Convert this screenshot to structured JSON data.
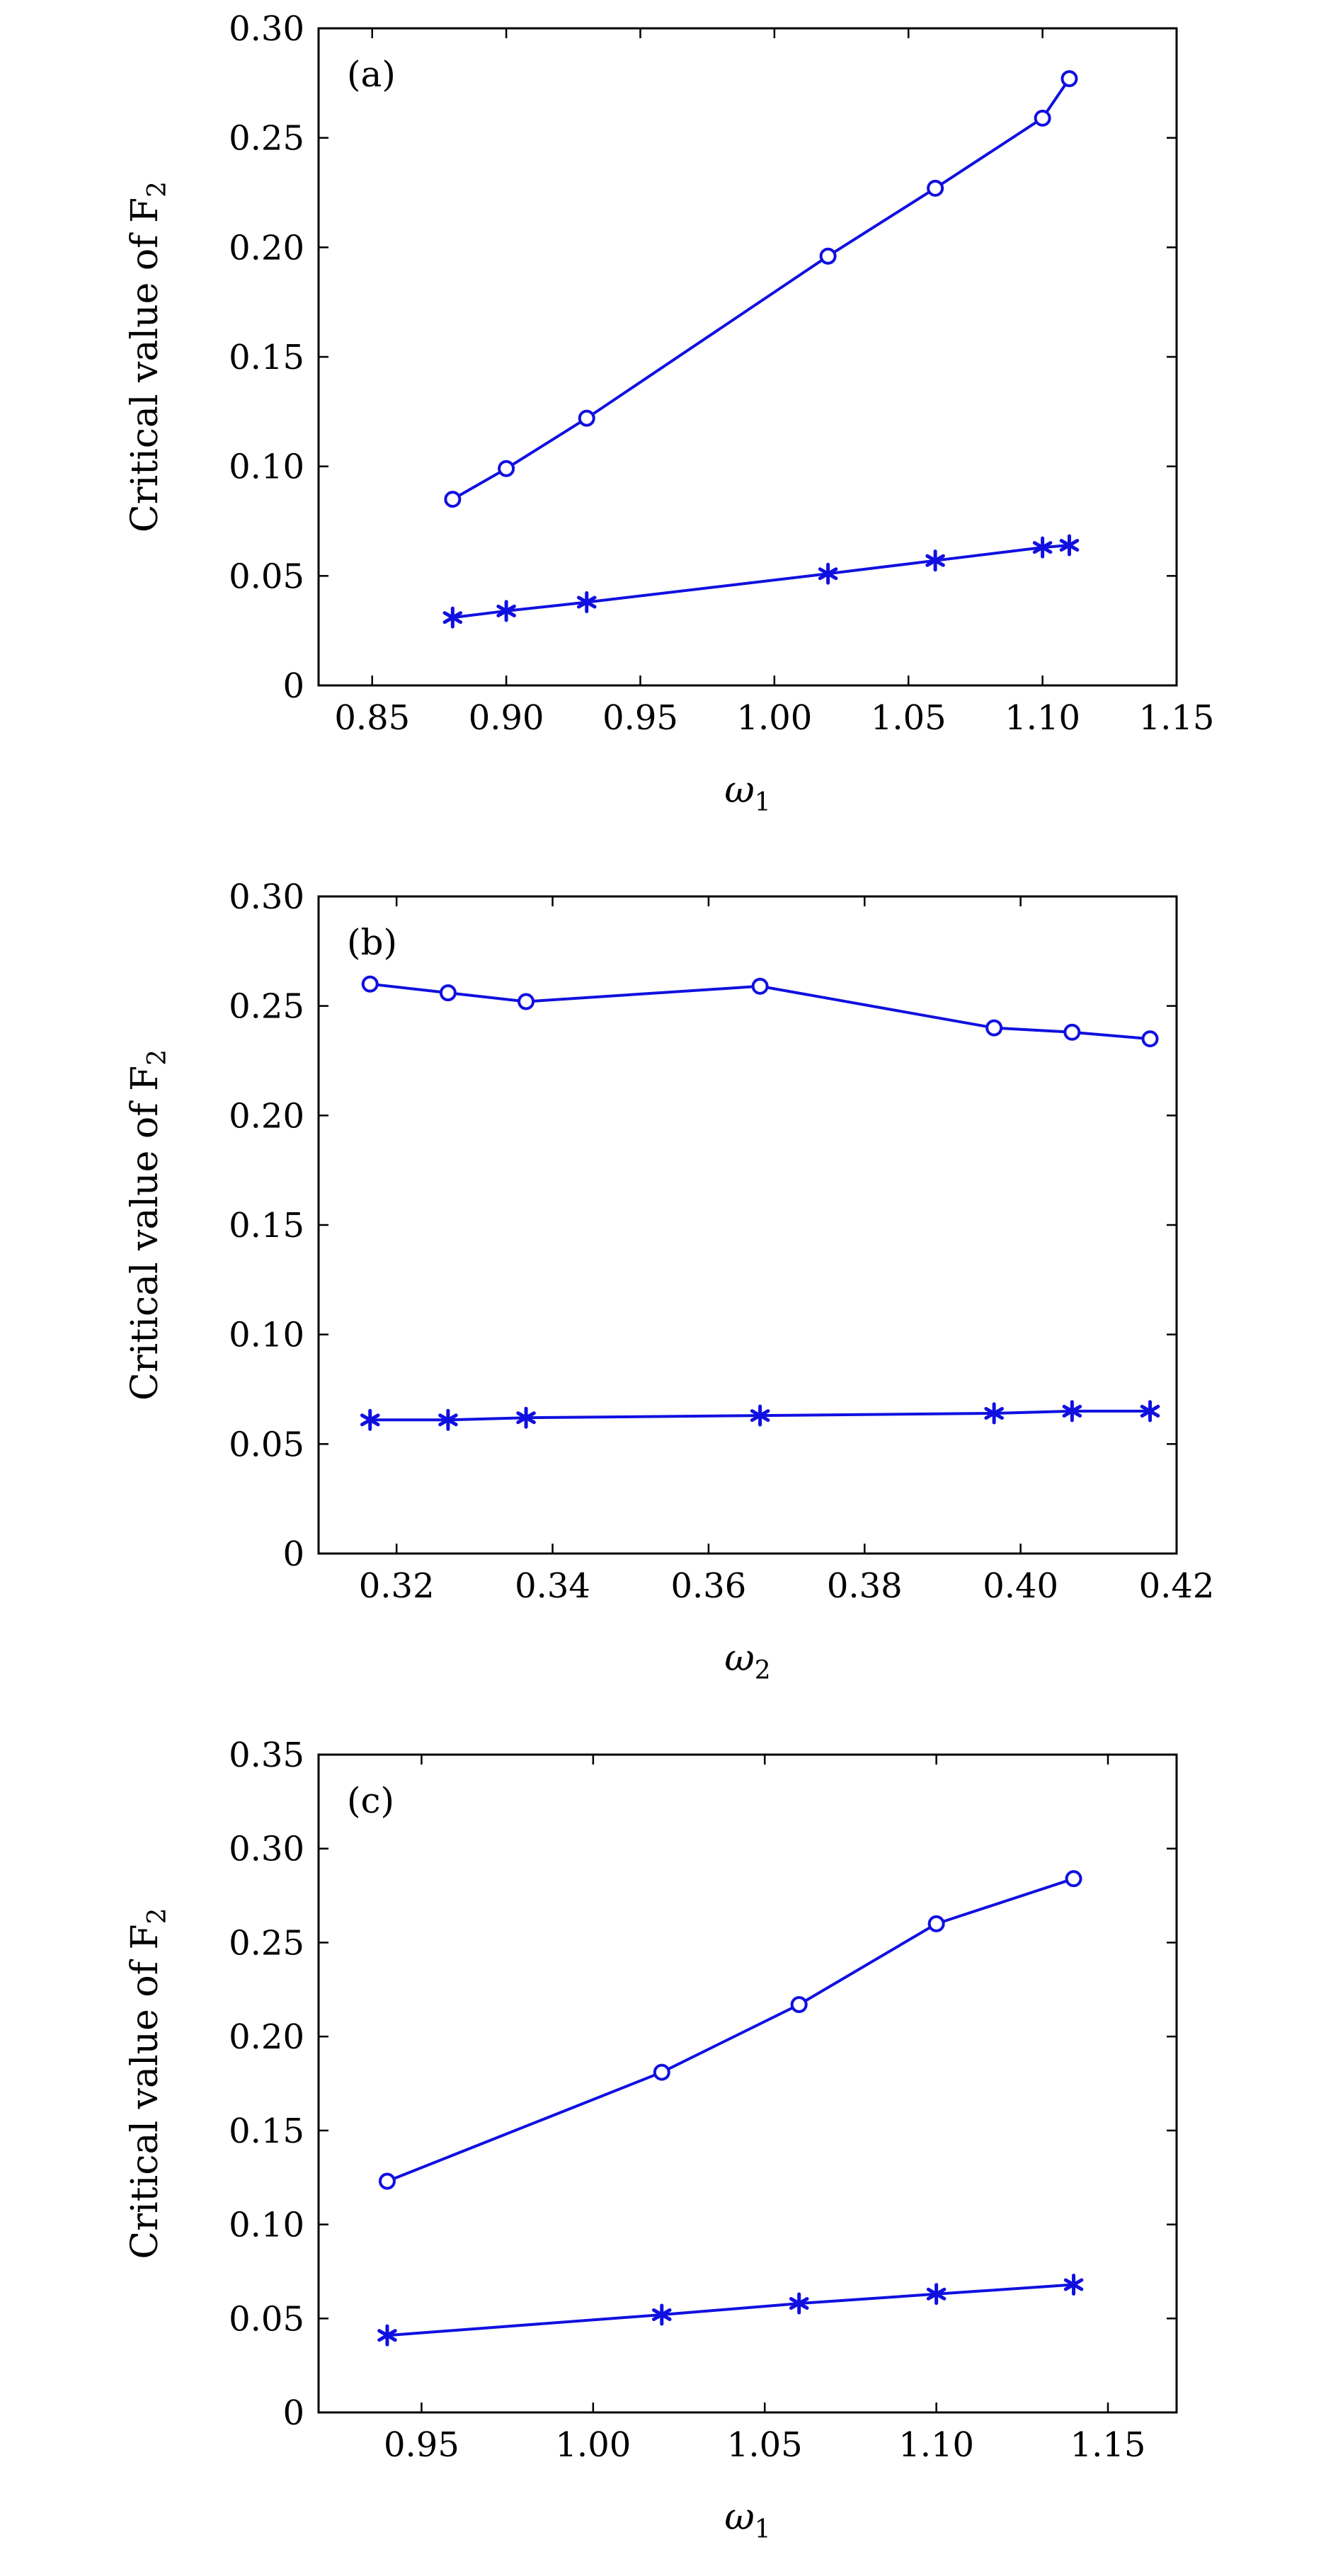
{
  "chart_data": [
    {
      "type": "line",
      "panel_label": "(a)",
      "xlabel": "ω",
      "xlabel_sub": "1",
      "ylabel": "Critical value of F",
      "ylabel_sub": "2",
      "xlim": [
        0.83,
        1.15
      ],
      "ylim": [
        0,
        0.3
      ],
      "xticks": [
        "0.85",
        "0.90",
        "0.95",
        "1.00",
        "1.05",
        "1.10",
        "1.15"
      ],
      "xtick_values": [
        0.85,
        0.9,
        0.95,
        1.0,
        1.05,
        1.1,
        1.15
      ],
      "yticks": [
        "0",
        "0.05",
        "0.10",
        "0.15",
        "0.20",
        "0.25",
        "0.30"
      ],
      "ytick_values": [
        0,
        0.05,
        0.1,
        0.15,
        0.2,
        0.25,
        0.3
      ],
      "grid": false,
      "legend": "none",
      "series": [
        {
          "marker": "circle",
          "color": "#1010e0",
          "x": [
            0.88,
            0.9,
            0.93,
            1.02,
            1.06,
            1.1,
            1.11
          ],
          "values": [
            0.085,
            0.099,
            0.122,
            0.196,
            0.227,
            0.259,
            0.277
          ]
        },
        {
          "marker": "asterisk",
          "color": "#1010e0",
          "x": [
            0.88,
            0.9,
            0.93,
            1.02,
            1.06,
            1.1,
            1.11
          ],
          "values": [
            0.031,
            0.034,
            0.038,
            0.051,
            0.057,
            0.063,
            0.064
          ]
        }
      ]
    },
    {
      "type": "line",
      "panel_label": "(b)",
      "xlabel": "ω",
      "xlabel_sub": "2",
      "ylabel": "Critical value of F",
      "ylabel_sub": "2",
      "xlim": [
        0.31,
        0.42
      ],
      "ylim": [
        0,
        0.3
      ],
      "xticks": [
        "0.32",
        "0.34",
        "0.36",
        "0.38",
        "0.40",
        "0.42"
      ],
      "xtick_values": [
        0.32,
        0.34,
        0.36,
        0.38,
        0.4,
        0.42
      ],
      "yticks": [
        "0",
        "0.05",
        "0.10",
        "0.15",
        "0.20",
        "0.25",
        "0.30"
      ],
      "ytick_values": [
        0,
        0.05,
        0.1,
        0.15,
        0.2,
        0.25,
        0.3
      ],
      "grid": false,
      "legend": "none",
      "series": [
        {
          "marker": "circle",
          "color": "#1010e0",
          "x": [
            0.3166,
            0.3266,
            0.3366,
            0.3666,
            0.3966,
            0.4066,
            0.4166
          ],
          "values": [
            0.26,
            0.256,
            0.252,
            0.259,
            0.24,
            0.238,
            0.235
          ]
        },
        {
          "marker": "asterisk",
          "color": "#1010e0",
          "x": [
            0.3166,
            0.3266,
            0.3366,
            0.3666,
            0.3966,
            0.4066,
            0.4166
          ],
          "values": [
            0.061,
            0.061,
            0.062,
            0.063,
            0.064,
            0.065,
            0.065
          ]
        }
      ]
    },
    {
      "type": "line",
      "panel_label": "(c)",
      "xlabel": "ω",
      "xlabel_sub": "1",
      "ylabel": "Critical value of F",
      "ylabel_sub": "2",
      "xlim": [
        0.92,
        1.17
      ],
      "ylim": [
        0,
        0.35
      ],
      "xticks": [
        "0.95",
        "1.00",
        "1.05",
        "1.10",
        "1.15"
      ],
      "xtick_values": [
        0.95,
        1.0,
        1.05,
        1.1,
        1.15
      ],
      "yticks": [
        "0",
        "0.05",
        "0.10",
        "0.15",
        "0.20",
        "0.25",
        "0.30",
        "0.35"
      ],
      "ytick_values": [
        0,
        0.05,
        0.1,
        0.15,
        0.2,
        0.25,
        0.3,
        0.35
      ],
      "grid": false,
      "legend": "none",
      "series": [
        {
          "marker": "circle",
          "color": "#1010e0",
          "x": [
            0.94,
            1.02,
            1.06,
            1.1,
            1.14
          ],
          "values": [
            0.123,
            0.181,
            0.217,
            0.26,
            0.284
          ]
        },
        {
          "marker": "asterisk",
          "color": "#1010e0",
          "x": [
            0.94,
            1.02,
            1.06,
            1.1,
            1.14
          ],
          "values": [
            0.041,
            0.052,
            0.058,
            0.063,
            0.068
          ]
        }
      ]
    }
  ]
}
